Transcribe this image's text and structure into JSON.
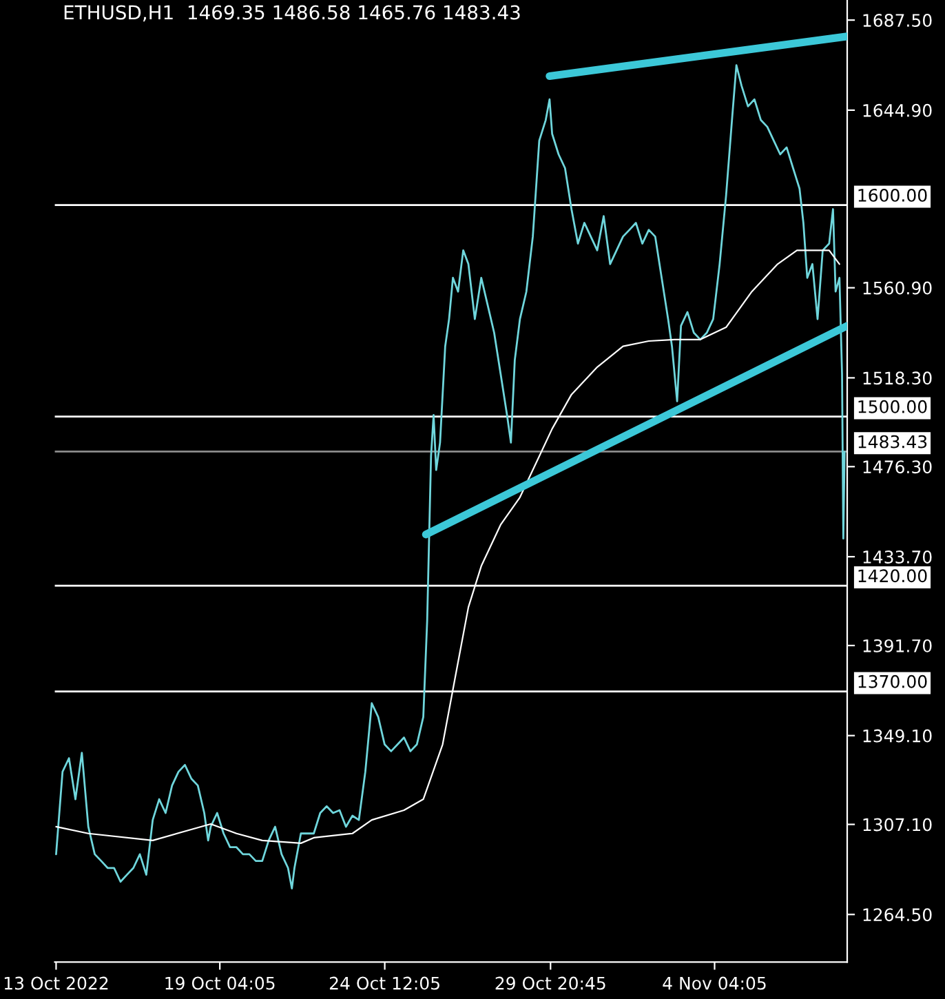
{
  "chart_data": {
    "type": "line",
    "title": "ETHUSD,H1  1469.35 1486.58 1465.76 1483.43",
    "xlim": [
      "2022-10-13T20:00",
      "2022-11-08T11:00"
    ],
    "xticks": [
      {
        "value": "2022-10-13T21:00",
        "label": "13 Oct 2022"
      },
      {
        "value": "2022-10-19T04:05",
        "label": "19 Oct 04:05"
      },
      {
        "value": "2022-10-24T12:05",
        "label": "24 Oct 12:05"
      },
      {
        "value": "2022-10-29T20:45",
        "label": "29 Oct 20:45"
      },
      {
        "value": "2022-11-04T04:05",
        "label": "4 Nov 04:05"
      }
    ],
    "ylim": [
      1242,
      1697
    ],
    "yticks": [
      {
        "value": 1687.5,
        "label": "1687.50"
      },
      {
        "value": 1644.9,
        "label": "1644.90"
      },
      {
        "value": 1560.9,
        "label": "1560.90"
      },
      {
        "value": 1518.3,
        "label": "1518.30"
      },
      {
        "value": 1476.3,
        "label": "1476.30"
      },
      {
        "value": 1433.7,
        "label": "1433.70"
      },
      {
        "value": 1391.7,
        "label": "1391.70"
      },
      {
        "value": 1349.1,
        "label": "1349.10"
      },
      {
        "value": 1307.1,
        "label": "1307.10"
      },
      {
        "value": 1264.5,
        "label": "1264.50"
      }
    ],
    "grid": false,
    "marker": "none",
    "line_style": "solid",
    "series": [
      {
        "color": "#6fd6dc",
        "x": [
          "2022-10-13T21:00",
          "2022-10-14T02:00",
          "2022-10-14T07:00",
          "2022-10-14T12:00",
          "2022-10-14T17:00",
          "2022-10-14T22:00",
          "2022-10-15T03:00",
          "2022-10-15T08:00",
          "2022-10-15T13:00",
          "2022-10-15T18:00",
          "2022-10-15T23:00",
          "2022-10-16T04:00",
          "2022-10-16T09:00",
          "2022-10-16T14:00",
          "2022-10-16T19:00",
          "2022-10-17T00:00",
          "2022-10-17T05:00",
          "2022-10-17T10:00",
          "2022-10-17T15:00",
          "2022-10-17T20:00",
          "2022-10-18T01:00",
          "2022-10-18T06:00",
          "2022-10-18T11:00",
          "2022-10-18T16:00",
          "2022-10-18T19:00",
          "2022-10-18T21:00",
          "2022-10-19T02:00",
          "2022-10-19T07:00",
          "2022-10-19T12:00",
          "2022-10-19T17:00",
          "2022-10-19T22:00",
          "2022-10-20T03:00",
          "2022-10-20T08:00",
          "2022-10-20T13:00",
          "2022-10-20T18:00",
          "2022-10-20T23:00",
          "2022-10-21T04:00",
          "2022-10-21T09:00",
          "2022-10-21T12:00",
          "2022-10-21T14:00",
          "2022-10-21T19:00",
          "2022-10-22T00:00",
          "2022-10-22T05:00",
          "2022-10-22T10:00",
          "2022-10-22T15:00",
          "2022-10-22T20:00",
          "2022-10-23T01:00",
          "2022-10-23T06:00",
          "2022-10-23T11:00",
          "2022-10-23T16:00",
          "2022-10-23T21:00",
          "2022-10-24T02:00",
          "2022-10-24T07:00",
          "2022-10-24T12:00",
          "2022-10-24T17:00",
          "2022-10-24T22:00",
          "2022-10-25T03:00",
          "2022-10-25T08:00",
          "2022-10-25T13:00",
          "2022-10-25T18:00",
          "2022-10-25T21:00",
          "2022-10-26T00:00",
          "2022-10-26T02:00",
          "2022-10-26T04:00",
          "2022-10-26T07:00",
          "2022-10-26T11:00",
          "2022-10-26T14:00",
          "2022-10-26T17:00",
          "2022-10-26T21:00",
          "2022-10-27T01:00",
          "2022-10-27T05:00",
          "2022-10-27T10:00",
          "2022-10-27T15:00",
          "2022-10-27T20:00",
          "2022-10-28T01:00",
          "2022-10-28T06:00",
          "2022-10-28T11:00",
          "2022-10-28T14:00",
          "2022-10-28T17:00",
          "2022-10-28T21:00",
          "2022-10-29T02:00",
          "2022-10-29T07:00",
          "2022-10-29T12:00",
          "2022-10-29T17:00",
          "2022-10-29T20:00",
          "2022-10-29T22:00",
          "2022-10-30T03:00",
          "2022-10-30T08:00",
          "2022-10-30T13:00",
          "2022-10-30T18:00",
          "2022-10-30T23:00",
          "2022-10-31T04:00",
          "2022-10-31T09:00",
          "2022-10-31T14:00",
          "2022-10-31T19:00",
          "2022-11-01T00:00",
          "2022-11-01T05:00",
          "2022-11-01T10:00",
          "2022-11-01T15:00",
          "2022-11-01T20:00",
          "2022-11-02T01:00",
          "2022-11-02T06:00",
          "2022-11-02T11:00",
          "2022-11-02T16:00",
          "2022-11-02T19:00",
          "2022-11-02T23:00",
          "2022-11-03T02:00",
          "2022-11-03T07:00",
          "2022-11-03T12:00",
          "2022-11-03T17:00",
          "2022-11-03T22:00",
          "2022-11-04T03:00",
          "2022-11-04T08:00",
          "2022-11-04T13:00",
          "2022-11-04T18:00",
          "2022-11-04T21:00",
          "2022-11-05T01:00",
          "2022-11-05T06:00",
          "2022-11-05T11:00",
          "2022-11-05T16:00",
          "2022-11-05T21:00",
          "2022-11-06T02:00",
          "2022-11-06T07:00",
          "2022-11-06T12:00",
          "2022-11-06T17:00",
          "2022-11-06T22:00",
          "2022-11-07T01:00",
          "2022-11-07T04:00",
          "2022-11-07T08:00",
          "2022-11-07T12:00",
          "2022-11-07T16:00",
          "2022-11-07T21:00",
          "2022-11-08T00:00",
          "2022-11-08T02:00",
          "2022-11-08T05:00",
          "2022-11-08T07:00",
          "2022-11-08T08:00",
          "2022-11-08T09:00"
        ],
        "values": [
          1293.0,
          1332.0,
          1338.4,
          1319.0,
          1341.0,
          1306.0,
          1293.0,
          1289.8,
          1286.5,
          1286.5,
          1280.0,
          1283.3,
          1286.5,
          1293.0,
          1283.3,
          1309.2,
          1319.0,
          1312.5,
          1325.5,
          1332.0,
          1335.2,
          1328.7,
          1325.5,
          1312.5,
          1299.5,
          1306.0,
          1312.5,
          1302.8,
          1296.3,
          1296.3,
          1293.0,
          1293.0,
          1289.8,
          1289.8,
          1299.5,
          1306.0,
          1293.0,
          1286.5,
          1276.8,
          1286.5,
          1302.8,
          1302.8,
          1302.8,
          1312.5,
          1315.7,
          1312.5,
          1313.8,
          1306.0,
          1311.2,
          1309.2,
          1332.0,
          1364.4,
          1357.9,
          1344.9,
          1341.7,
          1344.9,
          1348.2,
          1341.7,
          1344.9,
          1357.9,
          1403.4,
          1481.2,
          1500.7,
          1474.7,
          1487.7,
          1533.2,
          1546.1,
          1565.6,
          1559.1,
          1578.6,
          1572.1,
          1546.1,
          1565.6,
          1552.6,
          1539.6,
          1520.2,
          1500.7,
          1487.7,
          1526.7,
          1546.1,
          1559.1,
          1585.1,
          1630.5,
          1640.2,
          1650.0,
          1633.7,
          1624.0,
          1617.5,
          1598.1,
          1581.8,
          1591.6,
          1585.1,
          1578.6,
          1594.8,
          1572.1,
          1578.6,
          1585.1,
          1588.3,
          1591.6,
          1581.8,
          1588.3,
          1585.1,
          1565.6,
          1546.1,
          1533.2,
          1507.2,
          1542.9,
          1549.4,
          1539.6,
          1536.4,
          1539.6,
          1546.1,
          1572.1,
          1604.5,
          1643.5,
          1666.2,
          1656.5,
          1646.7,
          1650.0,
          1640.2,
          1637.0,
          1630.5,
          1624.0,
          1627.3,
          1617.5,
          1607.8,
          1591.6,
          1565.6,
          1572.1,
          1546.1,
          1578.6,
          1581.8,
          1598.1,
          1559.1,
          1565.6,
          1520.2,
          1442.3,
          1483.4
        ]
      },
      {
        "color": "#ffffff",
        "x": [
          "2022-10-13T21:00",
          "2022-10-14T22:00",
          "2022-10-17T00:00",
          "2022-10-18T21:00",
          "2022-10-19T17:00",
          "2022-10-20T13:00",
          "2022-10-21T19:00",
          "2022-10-22T05:00",
          "2022-10-23T11:00",
          "2022-10-24T02:00",
          "2022-10-25T03:00",
          "2022-10-25T18:00",
          "2022-10-26T09:00",
          "2022-10-26T19:00",
          "2022-10-27T05:00",
          "2022-10-27T15:00",
          "2022-10-28T06:00",
          "2022-10-28T21:00",
          "2022-10-29T12:00",
          "2022-10-29T22:00",
          "2022-10-30T13:00",
          "2022-10-31T09:00",
          "2022-11-01T05:00",
          "2022-11-02T01:00",
          "2022-11-02T21:00",
          "2022-11-03T17:00",
          "2022-11-04T13:00",
          "2022-11-05T09:00",
          "2022-11-06T05:00",
          "2022-11-06T20:00",
          "2022-11-07T06:00",
          "2022-11-07T21:00",
          "2022-11-08T05:00"
        ],
        "values": [
          1306.0,
          1302.8,
          1299.5,
          1307.3,
          1302.8,
          1299.5,
          1298.2,
          1300.8,
          1302.8,
          1309.2,
          1313.8,
          1319.0,
          1344.9,
          1377.4,
          1409.8,
          1429.3,
          1448.8,
          1461.8,
          1481.2,
          1494.2,
          1510.4,
          1523.4,
          1533.2,
          1535.7,
          1536.4,
          1536.4,
          1542.2,
          1559.1,
          1572.1,
          1578.6,
          1578.6,
          1578.6,
          1572.1
        ]
      },
      {
        "color": "#3cc8d8",
        "x": [
          "2022-10-29T20:00",
          "2022-11-08T11:00"
        ],
        "values": [
          1661.0,
          1679.8
        ]
      },
      {
        "color": "#3cc8d8",
        "x": [
          "2022-10-25T20:00",
          "2022-11-08T11:00"
        ],
        "values": [
          1444.2,
          1542.9
        ]
      }
    ],
    "ref_lines": [
      {
        "axis": "y",
        "value": 1600,
        "label": "1600.00",
        "color": "#ffffff"
      },
      {
        "axis": "y",
        "value": 1500,
        "label": "1500.00",
        "color": "#ffffff"
      },
      {
        "axis": "y",
        "value": 1483.43,
        "label": "1483.43",
        "color": "#8c8c8c"
      },
      {
        "axis": "y",
        "value": 1420,
        "label": "1420.00",
        "color": "#ffffff"
      },
      {
        "axis": "y",
        "value": 1370,
        "label": "1370.00",
        "color": "#ffffff"
      }
    ]
  }
}
